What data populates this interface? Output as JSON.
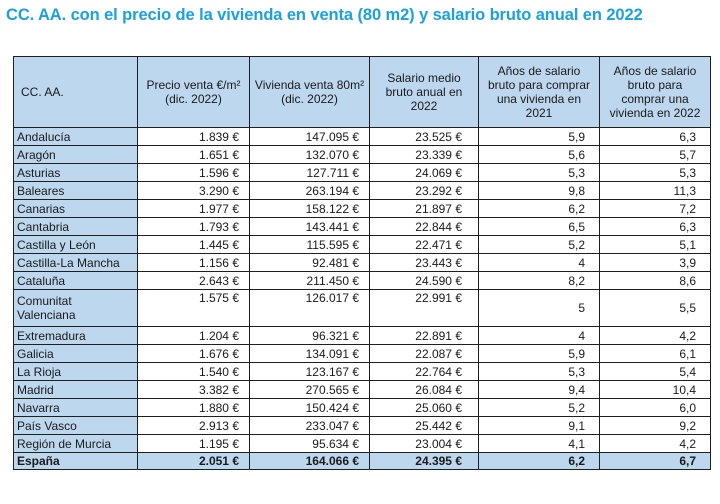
{
  "title": "CC. AA. con el precio de la vivienda en venta (80 m2) y salario bruto anual en 2022",
  "headers": [
    "CC. AA.",
    "Precio venta €/m² (dic. 2022)",
    "Vivienda venta 80m² (dic. 2022)",
    "Salario medio bruto anual en 2022",
    "Años de salario bruto para comprar una vivienda en 2021",
    "Años de salario bruto para comprar una vivienda en 2022"
  ],
  "rows": [
    [
      "Andalucía",
      "1.839 €",
      "147.095 €",
      "23.525 €",
      "5,9",
      "6,3"
    ],
    [
      "Aragón",
      "1.651 €",
      "132.070 €",
      "23.339 €",
      "5,6",
      "5,7"
    ],
    [
      "Asturias",
      "1.596 €",
      "127.711 €",
      "24.069 €",
      "5,3",
      "5,3"
    ],
    [
      "Baleares",
      "3.290 €",
      "263.194 €",
      "23.292 €",
      "9,8",
      "11,3"
    ],
    [
      "Canarias",
      "1.977 €",
      "158.122 €",
      "21.897 €",
      "6,2",
      "7,2"
    ],
    [
      "Cantabria",
      "1.793 €",
      "143.441 €",
      "22.844 €",
      "6,5",
      "6,3"
    ],
    [
      "Castilla y León",
      "1.445 €",
      "115.595 €",
      "22.471 €",
      "5,2",
      "5,1"
    ],
    [
      "Castilla-La Mancha",
      "1.156 €",
      "92.481 €",
      "23.443 €",
      "4",
      "3,9"
    ],
    [
      "Cataluña",
      "2.643 €",
      "211.450 €",
      "24.590 €",
      "8,2",
      "8,6"
    ],
    [
      "Comunitat Valenciana",
      "1.575 €",
      "126.017 €",
      "22.991 €",
      "5",
      "5,5"
    ],
    [
      "Extremadura",
      "1.204 €",
      "96.321 €",
      "22.891 €",
      "4",
      "4,2"
    ],
    [
      "Galicia",
      "1.676 €",
      "134.091 €",
      "22.087 €",
      "5,9",
      "6,1"
    ],
    [
      "La Rioja",
      "1.540 €",
      "123.167 €",
      "22.764 €",
      "5,3",
      "5,4"
    ],
    [
      "Madrid",
      "3.382 €",
      "270.565 €",
      "26.084 €",
      "9,4",
      "10,4"
    ],
    [
      "Navarra",
      "1.880 €",
      "150.424 €",
      "25.060 €",
      "5,2",
      "6,0"
    ],
    [
      "País Vasco",
      "2.913 €",
      "233.047 €",
      "25.442 €",
      "9,1",
      "9,2"
    ],
    [
      "Región de Murcia",
      "1.195 €",
      "95.634 €",
      "23.004 €",
      "4,1",
      "4,2"
    ]
  ],
  "total": [
    "España",
    "2.051 €",
    "164.066 €",
    "24.395 €",
    "6,2",
    "6,7"
  ]
}
